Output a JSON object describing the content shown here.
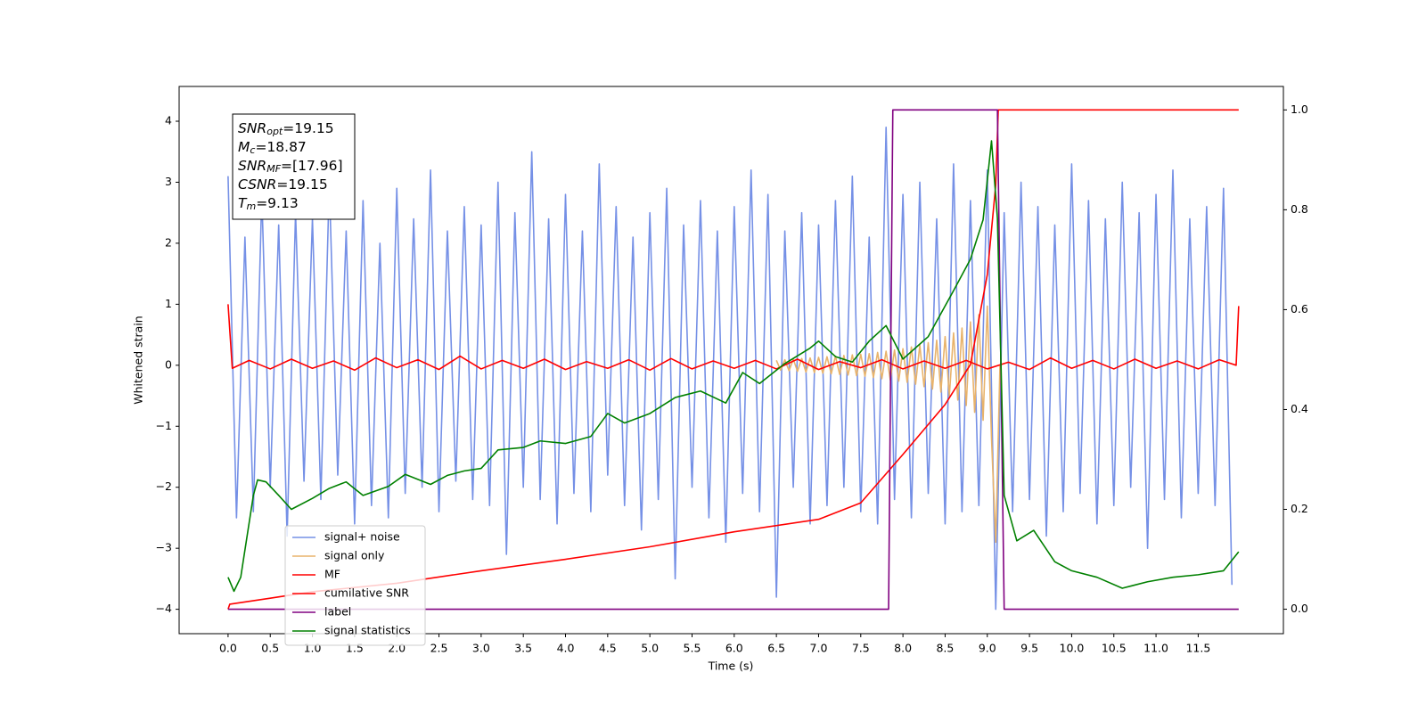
{
  "chart_data": {
    "type": "line",
    "xlabel": "Time (s)",
    "ylabel": "Whitened strain",
    "xlim": [
      -0.58,
      12.51
    ],
    "ylim": [
      -4.4,
      4.57
    ],
    "y2lim": [
      -0.049,
      1.047
    ],
    "xticks": [
      {
        "value": 0,
        "label": "0.0"
      },
      {
        "value": 0.5,
        "label": "0.5"
      },
      {
        "value": 1,
        "label": "1.0"
      },
      {
        "value": 1.5,
        "label": "1.5"
      },
      {
        "value": 2,
        "label": "2.0"
      },
      {
        "value": 2.5,
        "label": "2.5"
      },
      {
        "value": 3,
        "label": "3.0"
      },
      {
        "value": 3.5,
        "label": "3.5"
      },
      {
        "value": 4,
        "label": "4.0"
      },
      {
        "value": 4.5,
        "label": "4.5"
      },
      {
        "value": 5,
        "label": "5.0"
      },
      {
        "value": 5.5,
        "label": "5.5"
      },
      {
        "value": 6,
        "label": "6.0"
      },
      {
        "value": 6.5,
        "label": "6.5"
      },
      {
        "value": 7,
        "label": "7.0"
      },
      {
        "value": 7.5,
        "label": "7.5"
      },
      {
        "value": 8,
        "label": "8.0"
      },
      {
        "value": 8.5,
        "label": "8.5"
      },
      {
        "value": 9,
        "label": "9.0"
      },
      {
        "value": 9.5,
        "label": "9.5"
      },
      {
        "value": 10,
        "label": "10.0"
      },
      {
        "value": 10.5,
        "label": "10.5"
      },
      {
        "value": 11,
        "label": "11.0"
      },
      {
        "value": 11.5,
        "label": "11.5"
      }
    ],
    "yticks": [
      {
        "value": -4,
        "label": "−4"
      },
      {
        "value": -3,
        "label": "−3"
      },
      {
        "value": -2,
        "label": "−2"
      },
      {
        "value": -1,
        "label": "−1"
      },
      0,
      1,
      2,
      3,
      4
    ],
    "y2ticks": [
      {
        "value": 0,
        "label": "0.0"
      },
      {
        "value": 0.2,
        "label": "0.2"
      },
      {
        "value": 0.4,
        "label": "0.4"
      },
      {
        "value": 0.6,
        "label": "0.6"
      },
      {
        "value": 0.8,
        "label": "0.8"
      },
      {
        "value": 1,
        "label": "1.0"
      }
    ],
    "legend": "lower left",
    "annotation": [
      {
        "text": "SNR",
        "sub": "opt",
        "rest": "=19.15"
      },
      {
        "text": "M",
        "sub": "c",
        "rest": "=18.87"
      },
      {
        "text": "SNR",
        "sub": "MF",
        "rest": "=[17.96]"
      },
      {
        "text": "CSNR",
        "rest": "=19.15"
      },
      {
        "text": "T",
        "sub": "m",
        "rest": "=9.13"
      }
    ],
    "series": [
      {
        "name": "signal+ noise",
        "color": "#7590e6",
        "x": [
          0,
          0.1,
          0.2,
          0.3,
          0.4,
          0.5,
          0.6,
          0.7,
          0.8,
          0.9,
          1,
          1.1,
          1.2,
          1.3,
          1.4,
          1.5,
          1.6,
          1.7,
          1.8,
          1.9,
          2,
          2.1,
          2.2,
          2.3,
          2.4,
          2.5,
          2.6,
          2.7,
          2.8,
          2.9,
          3,
          3.1,
          3.2,
          3.3,
          3.4,
          3.5,
          3.6,
          3.7,
          3.8,
          3.9,
          4,
          4.1,
          4.2,
          4.3,
          4.4,
          4.5,
          4.6,
          4.7,
          4.8,
          4.9,
          5,
          5.1,
          5.2,
          5.3,
          5.4,
          5.5,
          5.6,
          5.7,
          5.8,
          5.9,
          6,
          6.1,
          6.2,
          6.3,
          6.4,
          6.5,
          6.6,
          6.7,
          6.8,
          6.9,
          7,
          7.1,
          7.2,
          7.3,
          7.4,
          7.5,
          7.6,
          7.7,
          7.8,
          7.9,
          8,
          8.1,
          8.2,
          8.3,
          8.4,
          8.5,
          8.6,
          8.7,
          8.8,
          8.9,
          9,
          9.1,
          9.2,
          9.3,
          9.4,
          9.5,
          9.6,
          9.7,
          9.8,
          9.9,
          10,
          10.1,
          10.2,
          10.3,
          10.4,
          10.5,
          10.6,
          10.7,
          10.8,
          10.9,
          11,
          11.1,
          11.2,
          11.3,
          11.4,
          11.5,
          11.6,
          11.7,
          11.8,
          11.9
        ],
        "values": [
          3.1,
          -2.5,
          2.1,
          -2.4,
          2.8,
          -2.0,
          2.3,
          -2.8,
          2.5,
          -1.9,
          2.4,
          -2.2,
          3.0,
          -1.8,
          2.2,
          -2.6,
          2.7,
          -2.3,
          2.0,
          -2.5,
          2.9,
          -2.1,
          2.4,
          -2.0,
          3.2,
          -2.4,
          2.2,
          -1.9,
          2.6,
          -2.2,
          2.3,
          -2.3,
          3.0,
          -3.1,
          2.5,
          -2.0,
          3.5,
          -2.2,
          2.4,
          -2.6,
          2.8,
          -2.1,
          2.2,
          -2.4,
          3.3,
          -1.8,
          2.6,
          -2.3,
          2.1,
          -2.7,
          2.5,
          -2.2,
          2.9,
          -3.5,
          2.3,
          -2.0,
          2.7,
          -2.5,
          2.2,
          -2.9,
          2.6,
          -2.1,
          3.2,
          -2.4,
          2.8,
          -3.8,
          2.2,
          -2.0,
          2.5,
          -2.6,
          2.3,
          -2.3,
          2.7,
          -2.0,
          3.1,
          -2.4,
          2.1,
          -2.6,
          3.9,
          -2.2,
          2.8,
          -2.5,
          3.0,
          -2.1,
          2.4,
          -2.6,
          3.3,
          -2.4,
          2.7,
          -2.3,
          3.2,
          -4.0,
          2.5,
          -2.4,
          3.0,
          -2.2,
          2.6,
          -2.8,
          2.3,
          -2.4,
          3.3,
          -2.1,
          2.7,
          -2.6,
          2.4,
          -2.3,
          3.0,
          -2.0,
          2.5,
          -3.0,
          2.8,
          -2.2,
          3.2,
          -2.5,
          2.4,
          -2.1,
          2.6,
          -2.3,
          2.9,
          -3.6
        ]
      },
      {
        "name": "signal only",
        "color": "#e8b36b",
        "x": [
          6.5,
          6.55,
          6.6,
          6.65,
          6.7,
          6.75,
          6.8,
          6.85,
          6.9,
          6.95,
          7,
          7.05,
          7.1,
          7.15,
          7.2,
          7.25,
          7.3,
          7.35,
          7.4,
          7.45,
          7.5,
          7.55,
          7.6,
          7.65,
          7.7,
          7.75,
          7.8,
          7.85,
          7.9,
          7.95,
          8,
          8.05,
          8.1,
          8.15,
          8.2,
          8.25,
          8.3,
          8.35,
          8.4,
          8.45,
          8.5,
          8.55,
          8.6,
          8.65,
          8.7,
          8.75,
          8.8,
          8.85,
          8.9,
          8.95,
          9,
          9.05,
          9.1,
          9.15
        ],
        "values": [
          0.08,
          -0.08,
          0.09,
          -0.09,
          0.1,
          -0.1,
          0.11,
          -0.11,
          0.12,
          -0.12,
          0.13,
          -0.13,
          0.14,
          -0.14,
          0.15,
          -0.15,
          0.16,
          -0.16,
          0.17,
          -0.17,
          0.18,
          -0.18,
          0.19,
          -0.2,
          0.21,
          -0.22,
          0.23,
          -0.24,
          0.25,
          -0.26,
          0.27,
          -0.28,
          0.3,
          -0.31,
          0.33,
          -0.35,
          0.37,
          -0.39,
          0.41,
          -0.44,
          0.47,
          -0.5,
          0.53,
          -0.57,
          0.61,
          -0.66,
          0.71,
          -0.77,
          0.83,
          -0.9,
          0.97,
          -1.2,
          -2.9,
          0.0
        ]
      },
      {
        "name": "MF",
        "color": "#ff0000",
        "x": [
          0,
          0.05,
          0.25,
          0.5,
          0.75,
          1,
          1.25,
          1.5,
          1.75,
          2,
          2.25,
          2.5,
          2.75,
          3,
          3.25,
          3.5,
          3.75,
          4,
          4.25,
          4.5,
          4.75,
          5,
          5.25,
          5.5,
          5.75,
          6,
          6.25,
          6.5,
          6.75,
          7,
          7.25,
          7.5,
          7.75,
          8,
          8.25,
          8.5,
          8.75,
          9,
          9.25,
          9.5,
          9.75,
          10,
          10.25,
          10.5,
          10.75,
          11,
          11.25,
          11.5,
          11.75,
          11.95,
          11.98
        ],
        "values": [
          1.0,
          -0.05,
          0.08,
          -0.06,
          0.1,
          -0.05,
          0.07,
          -0.08,
          0.12,
          -0.04,
          0.09,
          -0.07,
          0.15,
          -0.06,
          0.08,
          -0.05,
          0.1,
          -0.07,
          0.06,
          -0.05,
          0.09,
          -0.08,
          0.11,
          -0.06,
          0.07,
          -0.05,
          0.08,
          -0.06,
          0.1,
          -0.07,
          0.06,
          -0.04,
          0.09,
          -0.06,
          0.07,
          -0.05,
          0.08,
          -0.06,
          0.05,
          -0.07,
          0.12,
          -0.05,
          0.08,
          -0.06,
          0.1,
          -0.05,
          0.07,
          -0.06,
          0.09,
          0.0,
          0.97
        ]
      },
      {
        "name": "cumilative SNR",
        "color": "#ff0000",
        "axis": "y2",
        "x": [
          0,
          0.02,
          0.5,
          1,
          2,
          3,
          4,
          5,
          6,
          7,
          7.5,
          8,
          8.5,
          8.8,
          9,
          9.1,
          9.13,
          11.98
        ],
        "values": [
          0,
          0.01,
          0.022,
          0.035,
          0.052,
          0.077,
          0.1,
          0.125,
          0.155,
          0.18,
          0.213,
          0.31,
          0.41,
          0.49,
          0.67,
          0.85,
          1.0,
          1.0
        ]
      },
      {
        "name": "label",
        "color": "#800080",
        "axis": "y2",
        "x": [
          0,
          7.83,
          7.88,
          9.12,
          9.2,
          11.98
        ],
        "values": [
          0,
          0,
          1,
          1,
          0,
          0
        ]
      },
      {
        "name": "signal statistics",
        "color": "#008000",
        "axis": "y2",
        "x": [
          0,
          0.07,
          0.15,
          0.3,
          0.35,
          0.45,
          0.6,
          0.75,
          1,
          1.2,
          1.4,
          1.6,
          1.9,
          2.1,
          2.4,
          2.6,
          2.8,
          3,
          3.2,
          3.5,
          3.7,
          4,
          4.3,
          4.5,
          4.7,
          5,
          5.3,
          5.6,
          5.9,
          6.1,
          6.3,
          6.6,
          6.9,
          7,
          7.2,
          7.4,
          7.6,
          7.8,
          8,
          8.3,
          8.6,
          8.8,
          8.95,
          9.05,
          9.12,
          9.2,
          9.35,
          9.55,
          9.8,
          10,
          10.3,
          10.6,
          10.9,
          11.2,
          11.5,
          11.8,
          11.98
        ],
        "values": [
          0.064,
          0.036,
          0.064,
          0.228,
          0.259,
          0.255,
          0.228,
          0.2,
          0.222,
          0.242,
          0.255,
          0.228,
          0.246,
          0.27,
          0.25,
          0.268,
          0.277,
          0.282,
          0.319,
          0.324,
          0.337,
          0.332,
          0.346,
          0.392,
          0.373,
          0.392,
          0.424,
          0.437,
          0.413,
          0.474,
          0.452,
          0.492,
          0.523,
          0.537,
          0.506,
          0.495,
          0.537,
          0.568,
          0.501,
          0.546,
          0.638,
          0.701,
          0.78,
          0.938,
          0.783,
          0.228,
          0.137,
          0.158,
          0.095,
          0.077,
          0.064,
          0.042,
          0.055,
          0.064,
          0.069,
          0.077,
          0.115
        ]
      }
    ]
  }
}
